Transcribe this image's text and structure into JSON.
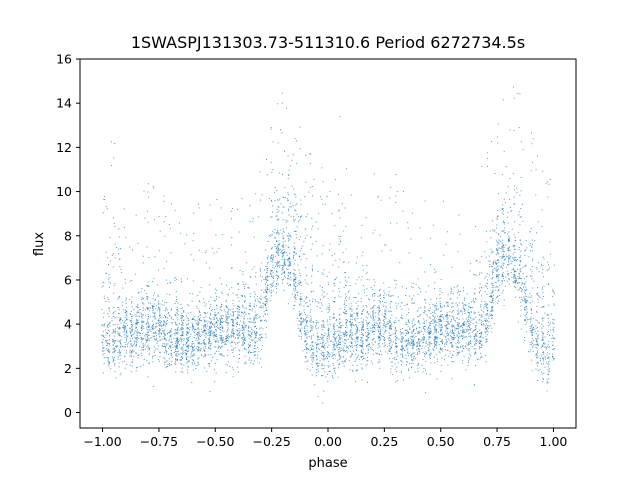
{
  "chart_data": {
    "type": "scatter",
    "title": "1SWASPJ131303.73-511310.6 Period 6272734.5s",
    "xlabel": "phase",
    "ylabel": "flux",
    "xlim": [
      -1.1,
      1.1
    ],
    "ylim": [
      -0.7,
      16
    ],
    "xticks": [
      -1.0,
      -0.75,
      -0.5,
      -0.25,
      0.0,
      0.25,
      0.5,
      0.75,
      1.0
    ],
    "xtick_labels": [
      "−1.00",
      "−0.75",
      "−0.50",
      "−0.25",
      "0.00",
      "0.25",
      "0.50",
      "0.75",
      "1.00"
    ],
    "yticks": [
      0,
      2,
      4,
      6,
      8,
      10,
      12,
      14,
      16
    ],
    "ytick_labels": [
      "0",
      "2",
      "4",
      "6",
      "8",
      "10",
      "12",
      "14",
      "16"
    ],
    "grid": false,
    "legend": "none",
    "marker_color": "#1f77b4",
    "series": [
      {
        "x_range": [
          -1.0,
          1.0
        ],
        "phase_profile": [
          {
            "phase": 0.0,
            "baseline": 3.0,
            "high": 6.0
          },
          {
            "phase": 0.05,
            "baseline": 3.2,
            "high": 8.5
          },
          {
            "phase": 0.1,
            "baseline": 3.5,
            "high": 5.0
          },
          {
            "phase": 0.15,
            "baseline": 3.3,
            "high": 4.5
          },
          {
            "phase": 0.2,
            "baseline": 3.6,
            "high": 6.0
          },
          {
            "phase": 0.25,
            "baseline": 3.8,
            "high": 4.5
          },
          {
            "phase": 0.3,
            "baseline": 3.0,
            "high": 6.0
          },
          {
            "phase": 0.35,
            "baseline": 3.2,
            "high": 4.5
          },
          {
            "phase": 0.4,
            "baseline": 3.0,
            "high": 5.0
          },
          {
            "phase": 0.45,
            "baseline": 3.5,
            "high": 4.6
          },
          {
            "phase": 0.5,
            "baseline": 3.7,
            "high": 5.0
          },
          {
            "phase": 0.55,
            "baseline": 3.6,
            "high": 4.8
          },
          {
            "phase": 0.6,
            "baseline": 3.8,
            "high": 5.0
          },
          {
            "phase": 0.65,
            "baseline": 3.3,
            "high": 5.5
          },
          {
            "phase": 0.7,
            "baseline": 4.0,
            "high": 7.0
          },
          {
            "phase": 0.75,
            "baseline": 6.5,
            "high": 9.0
          },
          {
            "phase": 0.8,
            "baseline": 7.0,
            "high": 10.0
          },
          {
            "phase": 0.85,
            "baseline": 6.0,
            "high": 9.5
          },
          {
            "phase": 0.9,
            "baseline": 3.5,
            "high": 8.5
          },
          {
            "phase": 0.95,
            "baseline": 2.8,
            "high": 7.0
          },
          {
            "phase": 1.0,
            "baseline": 3.0,
            "high": 6.0
          }
        ]
      }
    ]
  }
}
